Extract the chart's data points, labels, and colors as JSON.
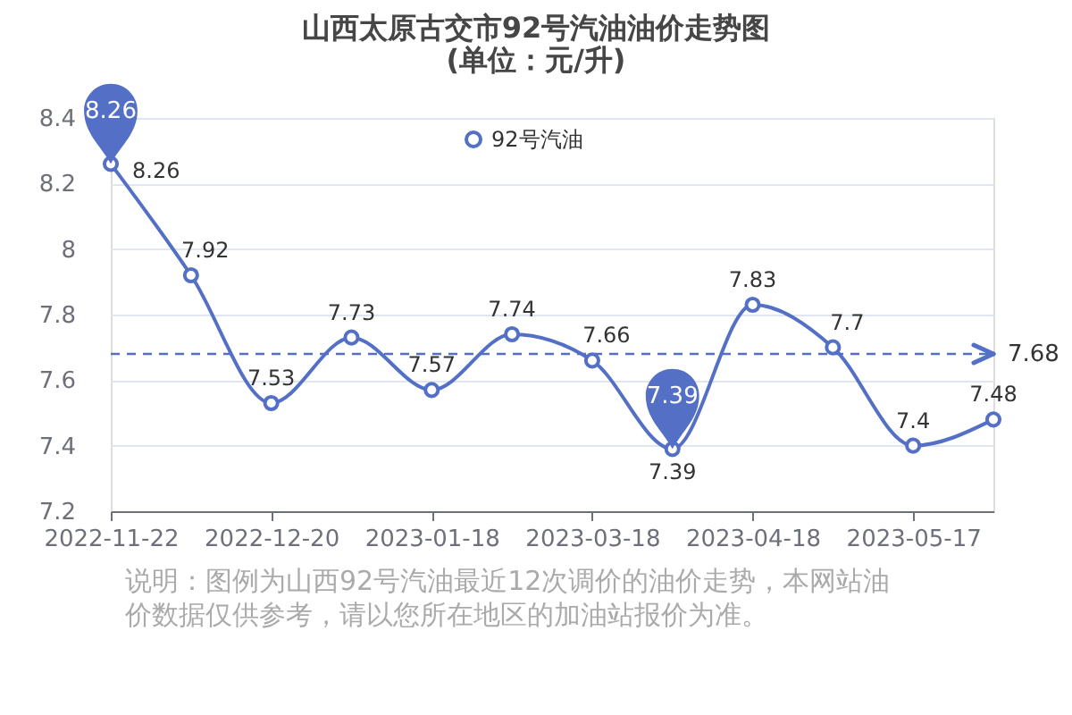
{
  "chart_data": {
    "type": "line",
    "title": "山西太原古交市92号汽油油价走势图",
    "subtitle": "(单位：元/升)",
    "categories": [
      "2022-11-22",
      null,
      "2022-12-20",
      null,
      "2023-01-18",
      null,
      "2023-03-18",
      null,
      "2023-04-18",
      null,
      "2023-05-17",
      null
    ],
    "series": [
      {
        "name": "92号汽油",
        "color": "#5470c6",
        "values": [
          8.26,
          7.92,
          7.53,
          7.73,
          7.57,
          7.74,
          7.66,
          7.39,
          7.83,
          7.7,
          7.4,
          7.48
        ]
      }
    ],
    "ylim": [
      7.2,
      8.4
    ],
    "yticks": [
      7.2,
      7.4,
      7.6,
      7.8,
      8,
      8.2,
      8.4
    ],
    "grid": "y",
    "legend": "top",
    "marker": "circle",
    "line_style": "solid",
    "data_labels": true,
    "ref_lines": [
      {
        "axis": "y",
        "value": 7.68,
        "label": "7.68",
        "color": "#5470c6",
        "line_style": "dashed"
      }
    ],
    "annotations": [
      {
        "text": "8.26",
        "x": "2022-11-22",
        "y": 8.26
      },
      {
        "text": "7.39",
        "y": 7.39
      },
      "说明：图例为山西92号汽油最近12次调价的油价走势，本网站油价数据仅供参考，请以您所在地区的加油站报价为准。"
    ]
  }
}
